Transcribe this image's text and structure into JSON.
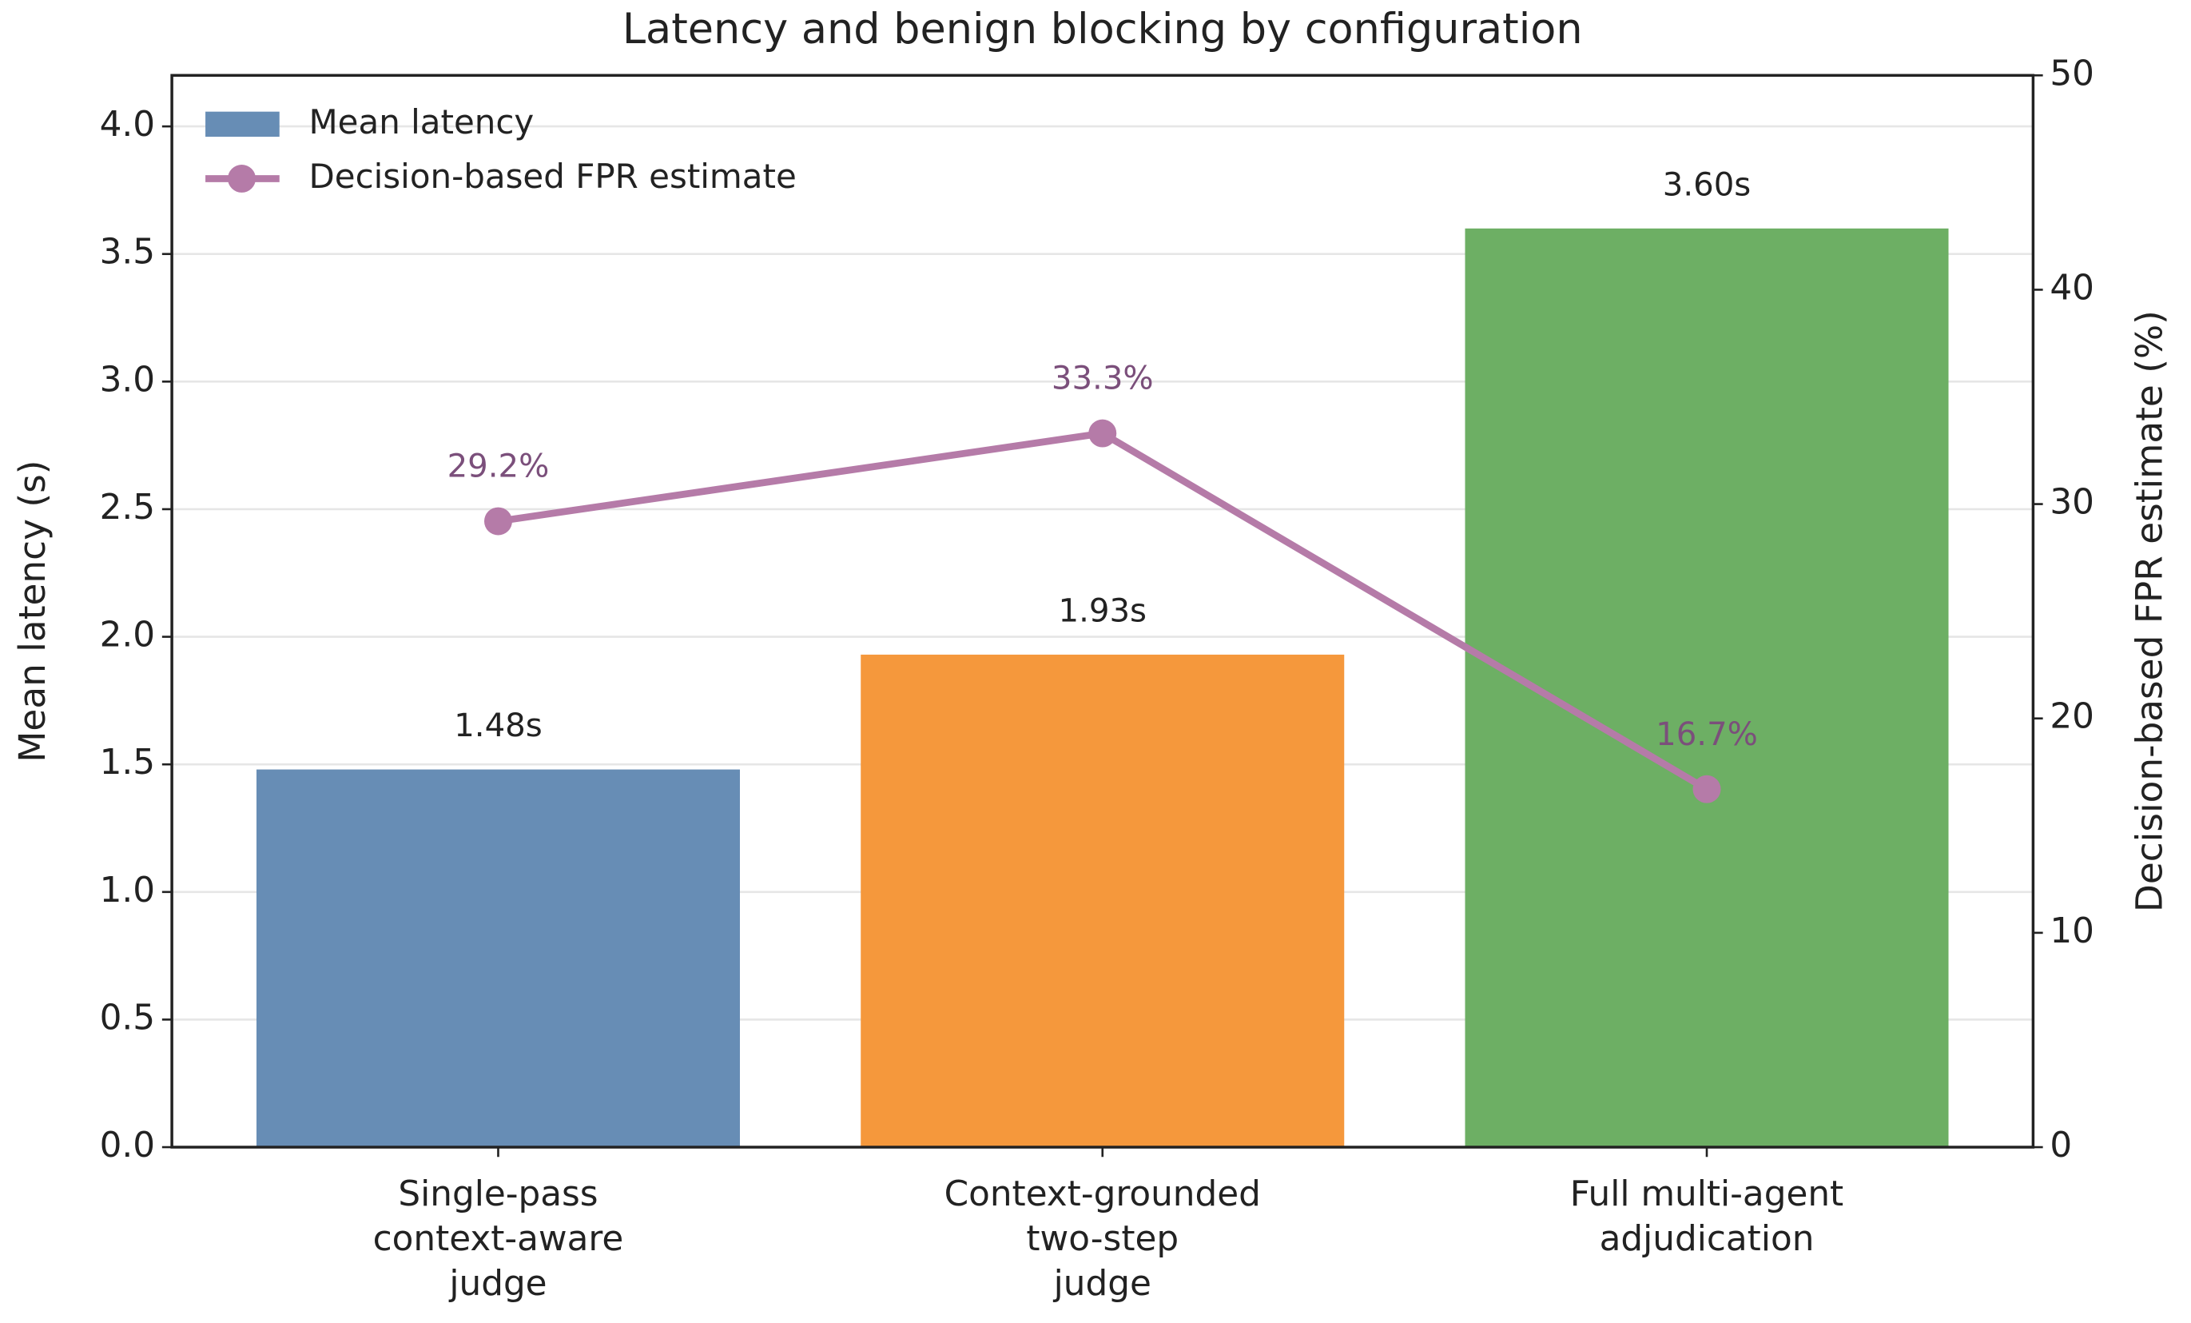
{
  "chart_data": {
    "type": "bar",
    "title": "Latency and benign blocking by configuration",
    "ylabel": "Mean latency (s)",
    "y2label": "Decision-based FPR estimate (%)",
    "categories": [
      "Single-pass\ncontext-aware\njudge",
      "Context-grounded\ntwo-step\njudge",
      "Full multi-agent\nadjudication"
    ],
    "series": [
      {
        "name": "Mean latency",
        "type": "bar",
        "color": "#678db5",
        "colors": [
          "#678db5",
          "#f5983c",
          "#6daf64"
        ],
        "values": [
          1.48,
          1.93,
          3.6
        ],
        "value_labels": [
          "1.48s",
          "1.93s",
          "3.60s"
        ]
      },
      {
        "name": "Decision-based FPR estimate",
        "type": "line",
        "axis": "y2",
        "color": "#b57ba8",
        "label_color": "#7b4f7b",
        "values": [
          29.2,
          33.3,
          16.7
        ],
        "value_labels": [
          "29.2%",
          "33.3%",
          "16.7%"
        ]
      }
    ],
    "ylim": [
      0,
      4.2
    ],
    "yticks": [
      {
        "value": 0,
        "label": "0.0"
      },
      0.5,
      {
        "value": 1,
        "label": "1.0"
      },
      1.5,
      {
        "value": 2,
        "label": "2.0"
      },
      2.5,
      {
        "value": 3,
        "label": "3.0"
      },
      3.5,
      {
        "value": 4,
        "label": "4.0"
      }
    ],
    "y2lim": [
      0,
      50
    ],
    "y2ticks": [
      0,
      10,
      20,
      30,
      40,
      50
    ],
    "grid": true,
    "legend": "upper left"
  }
}
